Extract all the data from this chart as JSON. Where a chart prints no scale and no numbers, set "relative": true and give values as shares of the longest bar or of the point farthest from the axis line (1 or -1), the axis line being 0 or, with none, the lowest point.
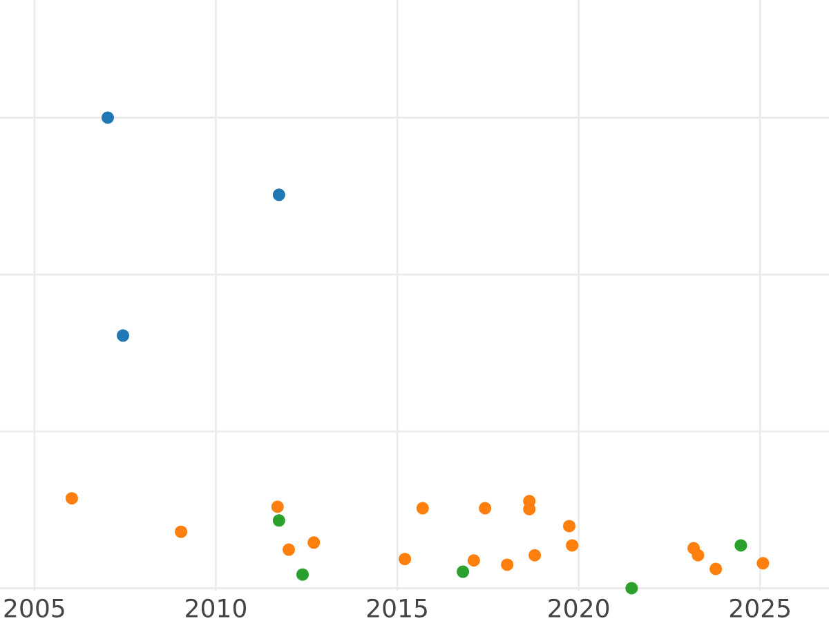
{
  "chart_data": {
    "type": "scatter",
    "relative": true,
    "grid": true,
    "marker": "circle",
    "xlim": [
      2004.05,
      2026.9
    ],
    "xticks": [
      2005,
      2010,
      2015,
      2020,
      2025
    ],
    "series": [
      {
        "color": "#1f77b4",
        "x": [
          2007.02,
          2011.74,
          2007.44
        ],
        "values": [
          1.0,
          0.836,
          0.537
        ]
      },
      {
        "color": "#ff7f0e",
        "x": [
          2006.03,
          2009.04,
          2011.7,
          2012.01,
          2012.7,
          2015.21,
          2015.7,
          2017.11,
          2017.42,
          2018.03,
          2018.64,
          2018.64,
          2018.79,
          2019.74,
          2019.82,
          2023.17,
          2023.29,
          2023.78,
          2025.08
        ],
        "values": [
          0.191,
          0.12,
          0.173,
          0.082,
          0.097,
          0.062,
          0.17,
          0.059,
          0.17,
          0.05,
          0.185,
          0.168,
          0.07,
          0.132,
          0.091,
          0.085,
          0.07,
          0.041,
          0.053
        ]
      },
      {
        "color": "#2ca02c",
        "x": [
          2011.74,
          2012.39,
          2016.81,
          2021.46,
          2024.47
        ],
        "values": [
          0.144,
          0.029,
          0.035,
          0.0,
          0.091
        ]
      }
    ]
  }
}
